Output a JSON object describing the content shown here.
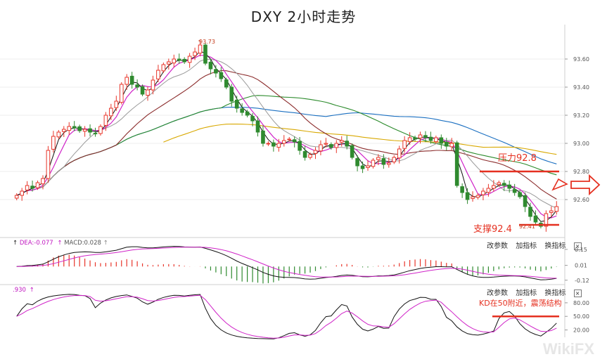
{
  "title": "DXY 2小时走势",
  "chart_data": [
    {
      "type": "candlestick",
      "title": "DXY 2小时走势",
      "y_ticks": [
        "93.60",
        "93.40",
        "93.20",
        "93.00",
        "92.80",
        "92.60"
      ],
      "ylim": [
        92.36,
        93.82
      ],
      "grid": true,
      "close_series": [
        92.63,
        92.66,
        92.7,
        92.68,
        92.72,
        92.75,
        92.95,
        93.05,
        93.08,
        93.1,
        93.12,
        93.11,
        93.09,
        93.1,
        93.08,
        93.07,
        93.12,
        93.2,
        93.25,
        93.3,
        93.42,
        93.47,
        93.42,
        93.4,
        93.35,
        93.38,
        93.45,
        93.52,
        93.56,
        93.58,
        93.6,
        93.59,
        93.58,
        93.62,
        93.65,
        93.7,
        93.57,
        93.53,
        93.5,
        93.46,
        93.4,
        93.3,
        93.25,
        93.22,
        93.2,
        93.16,
        93.08,
        93.0,
        93.0,
        92.98,
        93.0,
        93.02,
        93.03,
        93.01,
        92.95,
        92.9,
        92.92,
        92.95,
        92.99,
        93.0,
        92.97,
        93.0,
        93.02,
        92.98,
        92.9,
        92.84,
        92.82,
        92.84,
        92.88,
        92.9,
        92.85,
        92.86,
        92.9,
        92.96,
        93.02,
        93.04,
        93.03,
        93.06,
        93.04,
        93.02,
        93.04,
        93.0,
        92.98,
        93.0,
        92.7,
        92.65,
        92.6,
        92.62,
        92.63,
        92.66,
        92.68,
        92.7,
        92.72,
        92.7,
        92.68,
        92.65,
        92.62,
        92.55,
        92.48,
        92.44,
        92.41,
        92.5,
        92.52,
        92.55
      ],
      "annotations": [
        {
          "text": "93.73",
          "kind": "high"
        },
        {
          "text": "92.41",
          "kind": "low"
        },
        {
          "text": "压力92.8",
          "kind": "resistance",
          "y": 92.8
        },
        {
          "text": "支撑92.4",
          "kind": "support",
          "y": 92.42
        }
      ]
    },
    {
      "type": "macd",
      "header": {
        "dea": "DEA:-0.077",
        "macd": "MACD:0.028"
      },
      "y_ticks": [
        "0.15",
        "0.01",
        "-0.12"
      ],
      "ylim": [
        -0.14,
        0.18
      ]
    },
    {
      "type": "kdj",
      "header": ".930",
      "y_ticks": [
        "80.00",
        "50.00",
        "20.00"
      ],
      "ylim": [
        10,
        100
      ],
      "annotation": "KD在50附近，震荡结构"
    }
  ],
  "indicator_buttons": [
    "改参数",
    "加指标",
    "换指标"
  ],
  "close_glyph": "×",
  "watermark": "WikiFX",
  "colors": {
    "up": "#e8352a",
    "down": "#2f8a2f",
    "ma1": "#111111",
    "ma2": "#d024c8",
    "ma3": "#9a9a9a",
    "ma4": "#8b2b2b",
    "ma5": "#2a8a2a",
    "ma6": "#1a6fc1",
    "ma7": "#d8a800",
    "annotation": "#e53020"
  }
}
